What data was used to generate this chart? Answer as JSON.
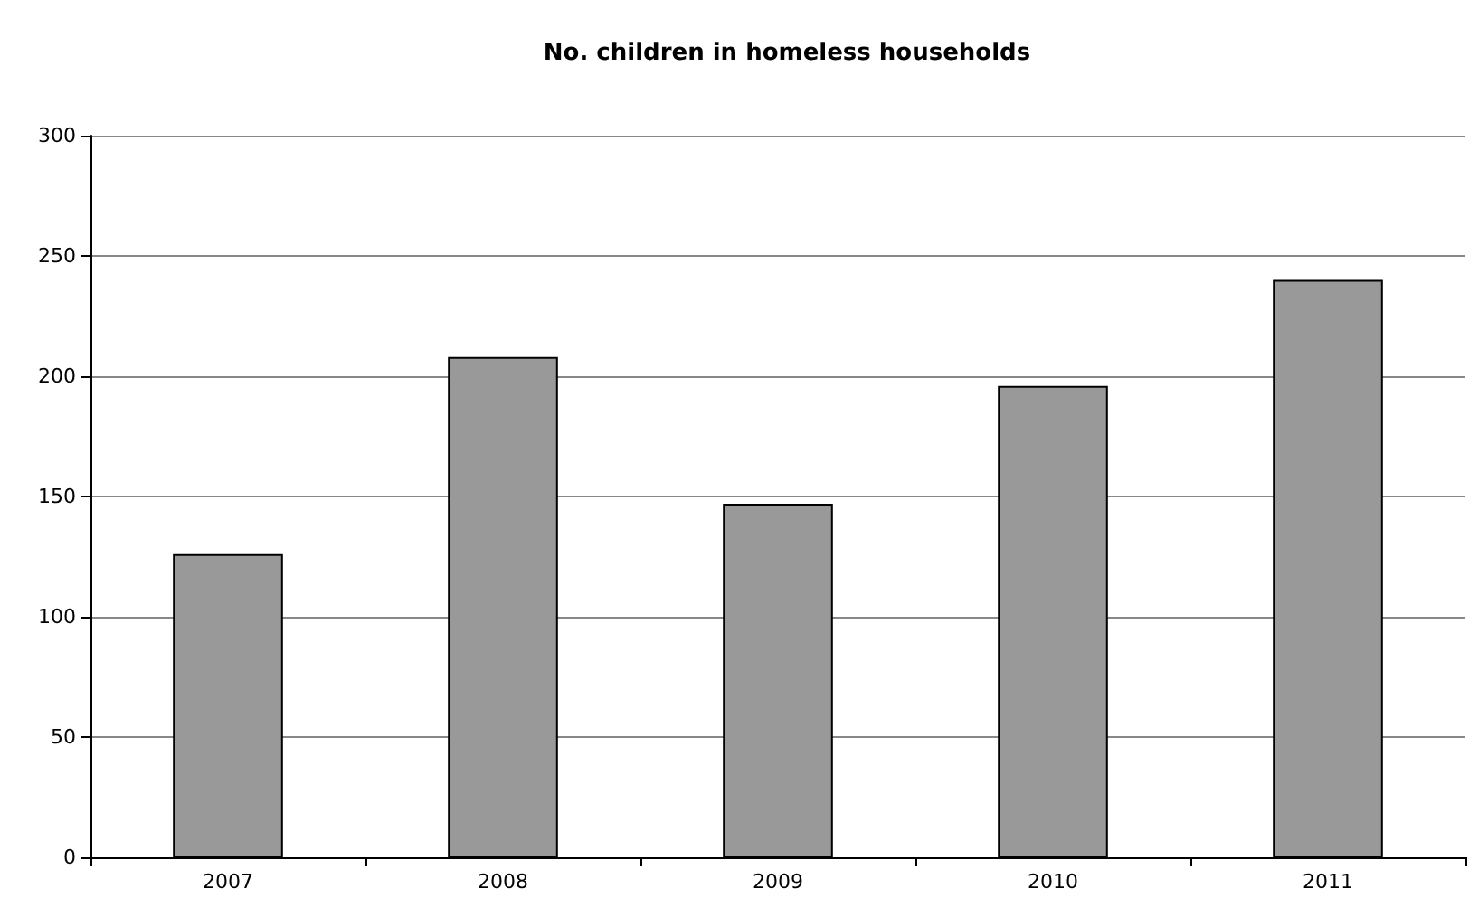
{
  "chart_data": {
    "type": "bar",
    "title": "No. children in homeless households",
    "categories": [
      "2007",
      "2008",
      "2009",
      "2010",
      "2011"
    ],
    "values": [
      126,
      208,
      147,
      196,
      240
    ],
    "color": "#999999",
    "ylim": [
      0,
      300
    ],
    "yticks": [
      0,
      50,
      100,
      150,
      200,
      250,
      300
    ],
    "grid": "y"
  }
}
